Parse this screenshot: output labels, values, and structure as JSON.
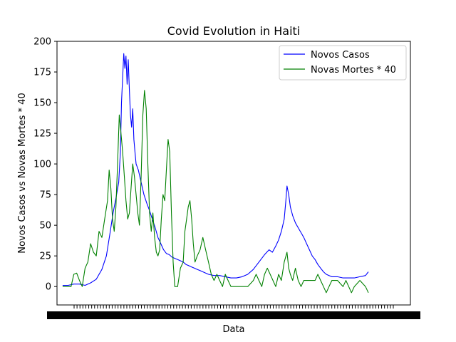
{
  "chart_data": {
    "type": "line",
    "title": "Covid Evolution in Haiti",
    "xlabel": "Data",
    "ylabel": "Novos Casos vs Novas Mortes * 40",
    "ylim": [
      -15,
      200
    ],
    "xlim": [
      -10,
      620
    ],
    "y_ticks": [
      0,
      25,
      50,
      75,
      100,
      125,
      150,
      175,
      200
    ],
    "legend_position": "top-right",
    "grid": false,
    "x_tick_labels_overlapping": true,
    "x_tick_count": 110,
    "series": [
      {
        "name": "Novos Casos",
        "color": "#0000ff",
        "points": [
          [
            0,
            1
          ],
          [
            10,
            1
          ],
          [
            20,
            2
          ],
          [
            30,
            2
          ],
          [
            40,
            1
          ],
          [
            50,
            3
          ],
          [
            60,
            6
          ],
          [
            70,
            14
          ],
          [
            78,
            25
          ],
          [
            85,
            45
          ],
          [
            90,
            60
          ],
          [
            95,
            72
          ],
          [
            100,
            85
          ],
          [
            103,
            110
          ],
          [
            105,
            150
          ],
          [
            107,
            170
          ],
          [
            109,
            190
          ],
          [
            111,
            178
          ],
          [
            113,
            188
          ],
          [
            115,
            165
          ],
          [
            117,
            185
          ],
          [
            119,
            160
          ],
          [
            121,
            140
          ],
          [
            123,
            130
          ],
          [
            125,
            145
          ],
          [
            127,
            120
          ],
          [
            129,
            110
          ],
          [
            131,
            100
          ],
          [
            135,
            95
          ],
          [
            140,
            85
          ],
          [
            145,
            75
          ],
          [
            150,
            68
          ],
          [
            155,
            62
          ],
          [
            160,
            55
          ],
          [
            165,
            48
          ],
          [
            170,
            40
          ],
          [
            175,
            35
          ],
          [
            180,
            30
          ],
          [
            185,
            27
          ],
          [
            190,
            26
          ],
          [
            195,
            24
          ],
          [
            200,
            23
          ],
          [
            205,
            22
          ],
          [
            210,
            21
          ],
          [
            215,
            20
          ],
          [
            220,
            18
          ],
          [
            225,
            17
          ],
          [
            230,
            16
          ],
          [
            235,
            15
          ],
          [
            240,
            14
          ],
          [
            245,
            13
          ],
          [
            250,
            12
          ],
          [
            255,
            11
          ],
          [
            260,
            10
          ],
          [
            270,
            9
          ],
          [
            280,
            9
          ],
          [
            290,
            8
          ],
          [
            300,
            7
          ],
          [
            310,
            7
          ],
          [
            320,
            8
          ],
          [
            330,
            10
          ],
          [
            340,
            14
          ],
          [
            350,
            20
          ],
          [
            360,
            26
          ],
          [
            368,
            30
          ],
          [
            374,
            28
          ],
          [
            380,
            33
          ],
          [
            385,
            38
          ],
          [
            390,
            45
          ],
          [
            395,
            55
          ],
          [
            398,
            70
          ],
          [
            400,
            82
          ],
          [
            403,
            75
          ],
          [
            406,
            65
          ],
          [
            410,
            58
          ],
          [
            415,
            52
          ],
          [
            420,
            48
          ],
          [
            425,
            44
          ],
          [
            430,
            40
          ],
          [
            435,
            35
          ],
          [
            440,
            30
          ],
          [
            445,
            25
          ],
          [
            450,
            22
          ],
          [
            455,
            18
          ],
          [
            460,
            15
          ],
          [
            465,
            12
          ],
          [
            470,
            10
          ],
          [
            475,
            9
          ],
          [
            480,
            8
          ],
          [
            490,
            8
          ],
          [
            500,
            7
          ],
          [
            510,
            7
          ],
          [
            520,
            7
          ],
          [
            530,
            8
          ],
          [
            540,
            9
          ],
          [
            545,
            12
          ]
        ]
      },
      {
        "name": "Novas Mortes * 40",
        "color": "#008000",
        "points": [
          [
            0,
            0
          ],
          [
            10,
            0
          ],
          [
            15,
            0
          ],
          [
            20,
            10
          ],
          [
            25,
            11
          ],
          [
            30,
            5
          ],
          [
            35,
            0
          ],
          [
            40,
            15
          ],
          [
            45,
            20
          ],
          [
            50,
            35
          ],
          [
            55,
            28
          ],
          [
            60,
            25
          ],
          [
            65,
            45
          ],
          [
            70,
            40
          ],
          [
            75,
            55
          ],
          [
            80,
            70
          ],
          [
            83,
            95
          ],
          [
            86,
            80
          ],
          [
            89,
            55
          ],
          [
            92,
            45
          ],
          [
            95,
            65
          ],
          [
            98,
            100
          ],
          [
            101,
            140
          ],
          [
            104,
            125
          ],
          [
            107,
            110
          ],
          [
            110,
            90
          ],
          [
            113,
            70
          ],
          [
            116,
            55
          ],
          [
            119,
            60
          ],
          [
            122,
            80
          ],
          [
            125,
            100
          ],
          [
            128,
            90
          ],
          [
            131,
            75
          ],
          [
            134,
            60
          ],
          [
            137,
            50
          ],
          [
            140,
            90
          ],
          [
            143,
            140
          ],
          [
            146,
            160
          ],
          [
            149,
            145
          ],
          [
            152,
            100
          ],
          [
            155,
            60
          ],
          [
            158,
            45
          ],
          [
            161,
            60
          ],
          [
            164,
            40
          ],
          [
            167,
            28
          ],
          [
            170,
            25
          ],
          [
            173,
            30
          ],
          [
            176,
            55
          ],
          [
            179,
            75
          ],
          [
            182,
            70
          ],
          [
            185,
            95
          ],
          [
            188,
            120
          ],
          [
            191,
            110
          ],
          [
            194,
            60
          ],
          [
            197,
            20
          ],
          [
            200,
            0
          ],
          [
            205,
            0
          ],
          [
            210,
            15
          ],
          [
            215,
            20
          ],
          [
            218,
            45
          ],
          [
            221,
            55
          ],
          [
            224,
            65
          ],
          [
            227,
            70
          ],
          [
            230,
            55
          ],
          [
            233,
            35
          ],
          [
            236,
            20
          ],
          [
            240,
            25
          ],
          [
            245,
            30
          ],
          [
            250,
            40
          ],
          [
            255,
            30
          ],
          [
            260,
            20
          ],
          [
            265,
            10
          ],
          [
            270,
            5
          ],
          [
            275,
            10
          ],
          [
            280,
            5
          ],
          [
            285,
            0
          ],
          [
            290,
            10
          ],
          [
            295,
            5
          ],
          [
            300,
            0
          ],
          [
            310,
            0
          ],
          [
            320,
            0
          ],
          [
            330,
            0
          ],
          [
            340,
            5
          ],
          [
            345,
            10
          ],
          [
            350,
            5
          ],
          [
            355,
            0
          ],
          [
            360,
            10
          ],
          [
            365,
            15
          ],
          [
            370,
            10
          ],
          [
            375,
            5
          ],
          [
            380,
            0
          ],
          [
            385,
            10
          ],
          [
            390,
            5
          ],
          [
            395,
            20
          ],
          [
            400,
            28
          ],
          [
            403,
            15
          ],
          [
            406,
            10
          ],
          [
            410,
            5
          ],
          [
            415,
            15
          ],
          [
            420,
            5
          ],
          [
            425,
            0
          ],
          [
            430,
            5
          ],
          [
            440,
            5
          ],
          [
            450,
            5
          ],
          [
            455,
            10
          ],
          [
            460,
            5
          ],
          [
            465,
            0
          ],
          [
            470,
            -5
          ],
          [
            475,
            0
          ],
          [
            480,
            5
          ],
          [
            490,
            5
          ],
          [
            500,
            0
          ],
          [
            505,
            5
          ],
          [
            510,
            0
          ],
          [
            515,
            -5
          ],
          [
            520,
            0
          ],
          [
            530,
            5
          ],
          [
            540,
            0
          ],
          [
            545,
            -5
          ]
        ]
      }
    ]
  }
}
